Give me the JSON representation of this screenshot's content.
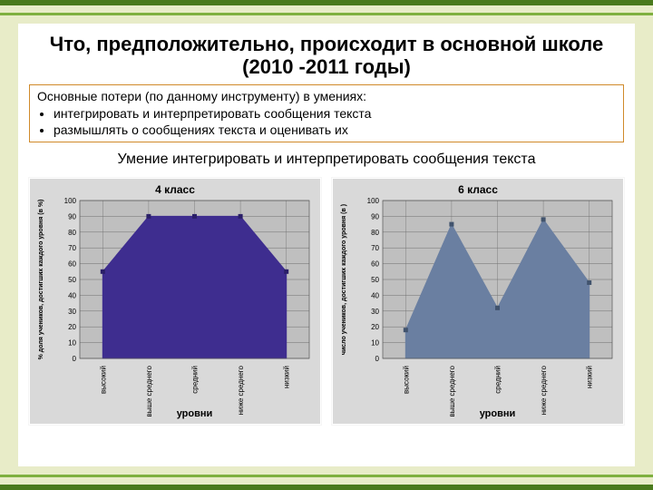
{
  "slide": {
    "title": "Что, предположительно, происходит в основной школе (2010 -2011 годы)",
    "box_lead": "Основные потери (по данному инструменту) в умениях:",
    "bullets": [
      "интегрировать и интерпретировать сообщения текста",
      "размышлять о сообщениях текста и оценивать их"
    ],
    "subtitle": "Умение интегрировать и интерпретировать сообщения текста"
  },
  "colors": {
    "bg_slide": "#e8ecc8",
    "accent_border": "#d08a2a",
    "chart_area_bg": "#d9d9d9",
    "plot_bg": "#bfbfbf",
    "grid": "#6f6f6f",
    "series_purple": "#3e2d8f",
    "series_slate": "#6a7fa1"
  },
  "chart_left": {
    "title": "4 класс",
    "xlabel": "уровни",
    "ylabel": "% доля учеников, достигших каждого уровня (в %)",
    "ylim": [
      0,
      100
    ],
    "ytick_step": 10,
    "categories": [
      "высокий",
      "выше среднего",
      "средний",
      "ниже среднего",
      "низкий"
    ],
    "values": [
      55,
      90,
      90,
      90,
      55
    ],
    "fill_color": "#3e2d8f",
    "marker_color": "#2a1f68",
    "title_fontsize": 12,
    "label_fontsize": 9
  },
  "chart_right": {
    "title": "6 класс",
    "xlabel": "уровни",
    "ylabel": "число учеников, достигших каждого уровня (в )",
    "ylim": [
      0,
      100
    ],
    "ytick_step": 10,
    "categories": [
      "высокий",
      "выше среднего",
      "средний",
      "ниже среднего",
      "низкий"
    ],
    "values": [
      18,
      85,
      32,
      88,
      48
    ],
    "fill_color": "#6a7fa1",
    "marker_color": "#41536d",
    "title_fontsize": 12,
    "label_fontsize": 9
  }
}
